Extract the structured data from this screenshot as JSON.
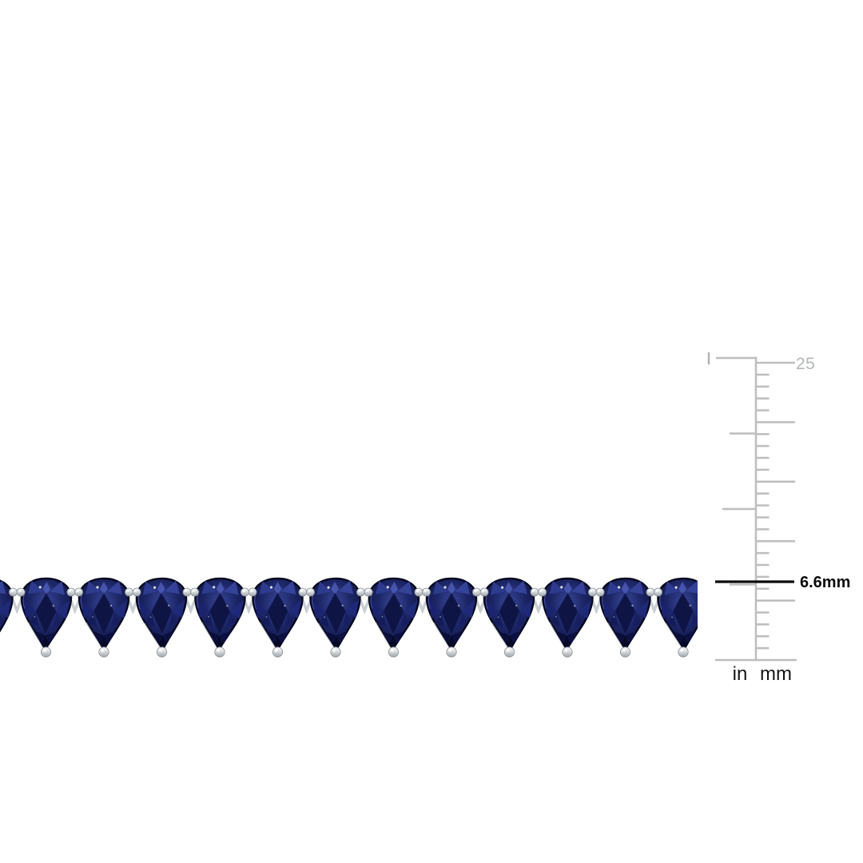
{
  "page": {
    "background": "#ffffff"
  },
  "bracelet": {
    "gem_count": 13,
    "stone_color": "#1d2768",
    "stone_dark_color": "#080c28",
    "stone_light_color": "#3a4899",
    "metal_color": "#d9dcde"
  },
  "ruler": {
    "max_mm_label": "25",
    "measurement_label": "6.6mm",
    "inch_unit_label": "in",
    "mm_unit_label": "mm",
    "line_color": "#bdbdbd",
    "inch_top_mark_color": "#b0b0b0",
    "measure_line_color": "#0b0b0b",
    "max_label_color": "#b3b6b8",
    "unit_label_color": "#141414"
  }
}
